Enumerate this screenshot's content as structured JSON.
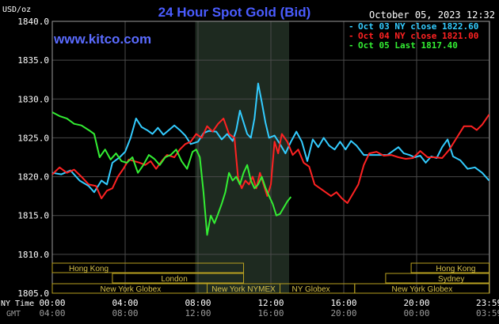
{
  "chart_data": {
    "type": "line",
    "title": "24 Hour Spot Gold (Bid)",
    "watermark": "www.kitco.com",
    "date_stamp": "October 05, 2023 12:32",
    "ylabel": "USD/oz",
    "ylim": [
      1805.0,
      1840.0
    ],
    "yticks": [
      "1840.0",
      "1835.0",
      "1830.0",
      "1825.0",
      "1820.0",
      "1815.0",
      "1810.0",
      "1805.0"
    ],
    "xlim": [
      0,
      24
    ],
    "xlabel_ny": "NY Time",
    "xlabel_gmt": "GMT",
    "xticks_ny": [
      {
        "h": 0,
        "label": "00:00"
      },
      {
        "h": 4,
        "label": "04:00"
      },
      {
        "h": 8,
        "label": "08:00"
      },
      {
        "h": 12,
        "label": "12:00"
      },
      {
        "h": 16,
        "label": "16:00"
      },
      {
        "h": 20,
        "label": "20:00"
      },
      {
        "h": 23.98,
        "label": "23:59"
      }
    ],
    "xticks_gmt": [
      {
        "h": 0,
        "label": "04:00"
      },
      {
        "h": 4,
        "label": "08:00"
      },
      {
        "h": 8,
        "label": "12:00"
      },
      {
        "h": 12,
        "label": "16:00"
      },
      {
        "h": 16,
        "label": "20:00"
      },
      {
        "h": 20,
        "label": "00:00"
      },
      {
        "h": 23.98,
        "label": "03:59"
      }
    ],
    "grid": true,
    "highlight_range": [
      7.85,
      13.0
    ],
    "legend_position": "top-right",
    "series": [
      {
        "name": "Oct 03 NY close 1822.60",
        "color": "#33ccff",
        "points": [
          [
            0,
            1820.5
          ],
          [
            0.5,
            1820.3
          ],
          [
            1.0,
            1820.8
          ],
          [
            1.5,
            1819.5
          ],
          [
            2.0,
            1818.8
          ],
          [
            2.3,
            1818.0
          ],
          [
            2.7,
            1819.5
          ],
          [
            3.0,
            1819.0
          ],
          [
            3.3,
            1821.8
          ],
          [
            3.7,
            1822.5
          ],
          [
            4.0,
            1823.2
          ],
          [
            4.3,
            1825.0
          ],
          [
            4.6,
            1827.5
          ],
          [
            4.9,
            1826.4
          ],
          [
            5.2,
            1826.0
          ],
          [
            5.5,
            1825.5
          ],
          [
            5.8,
            1826.3
          ],
          [
            6.1,
            1825.4
          ],
          [
            6.4,
            1826.0
          ],
          [
            6.7,
            1826.6
          ],
          [
            7.0,
            1826.0
          ],
          [
            7.3,
            1825.3
          ],
          [
            7.6,
            1824.2
          ],
          [
            8.0,
            1824.5
          ],
          [
            8.3,
            1825.6
          ],
          [
            8.6,
            1825.9
          ],
          [
            9.0,
            1825.8
          ],
          [
            9.3,
            1824.8
          ],
          [
            9.6,
            1825.5
          ],
          [
            9.9,
            1824.6
          ],
          [
            10.1,
            1826.0
          ],
          [
            10.3,
            1828.5
          ],
          [
            10.5,
            1827.0
          ],
          [
            10.7,
            1825.5
          ],
          [
            10.9,
            1825.0
          ],
          [
            11.1,
            1827.5
          ],
          [
            11.3,
            1832.0
          ],
          [
            11.5,
            1829.6
          ],
          [
            11.7,
            1827.0
          ],
          [
            11.9,
            1825.0
          ],
          [
            12.2,
            1825.3
          ],
          [
            12.5,
            1824.2
          ],
          [
            12.8,
            1823.0
          ],
          [
            13.1,
            1824.5
          ],
          [
            13.4,
            1825.8
          ],
          [
            13.7,
            1824.5
          ],
          [
            14.0,
            1822.0
          ],
          [
            14.3,
            1824.8
          ],
          [
            14.6,
            1823.8
          ],
          [
            14.9,
            1825.0
          ],
          [
            15.2,
            1824.0
          ],
          [
            15.5,
            1823.5
          ],
          [
            15.8,
            1824.5
          ],
          [
            16.1,
            1823.5
          ],
          [
            16.4,
            1824.6
          ],
          [
            16.7,
            1824.0
          ],
          [
            17.1,
            1822.8
          ],
          [
            17.5,
            1822.8
          ],
          [
            18.0,
            1822.8
          ],
          [
            18.4,
            1822.8
          ],
          [
            18.7,
            1823.3
          ],
          [
            19.0,
            1823.8
          ],
          [
            19.3,
            1823.0
          ],
          [
            19.6,
            1822.8
          ],
          [
            19.9,
            1822.5
          ],
          [
            20.2,
            1822.7
          ],
          [
            20.5,
            1821.8
          ],
          [
            20.8,
            1822.6
          ],
          [
            21.1,
            1822.4
          ],
          [
            21.4,
            1823.8
          ],
          [
            21.7,
            1824.8
          ],
          [
            22.0,
            1822.6
          ],
          [
            22.4,
            1822.1
          ],
          [
            22.8,
            1821.0
          ],
          [
            23.2,
            1821.2
          ],
          [
            23.6,
            1820.5
          ],
          [
            23.98,
            1819.5
          ]
        ]
      },
      {
        "name": "Oct 04 NY close 1821.00",
        "color": "#ff2222",
        "points": [
          [
            0,
            1820.3
          ],
          [
            0.4,
            1821.2
          ],
          [
            0.8,
            1820.5
          ],
          [
            1.2,
            1820.9
          ],
          [
            1.6,
            1820.0
          ],
          [
            2.0,
            1819.0
          ],
          [
            2.4,
            1818.8
          ],
          [
            2.7,
            1817.2
          ],
          [
            3.0,
            1818.2
          ],
          [
            3.3,
            1818.5
          ],
          [
            3.6,
            1820.0
          ],
          [
            3.9,
            1821.0
          ],
          [
            4.2,
            1822.2
          ],
          [
            4.5,
            1822.0
          ],
          [
            4.8,
            1821.8
          ],
          [
            5.1,
            1821.5
          ],
          [
            5.4,
            1822.0
          ],
          [
            5.7,
            1821.0
          ],
          [
            6.0,
            1822.0
          ],
          [
            6.3,
            1822.8
          ],
          [
            6.7,
            1822.5
          ],
          [
            7.0,
            1823.5
          ],
          [
            7.3,
            1824.2
          ],
          [
            7.6,
            1824.5
          ],
          [
            7.9,
            1825.5
          ],
          [
            8.2,
            1825.0
          ],
          [
            8.5,
            1826.5
          ],
          [
            8.8,
            1825.8
          ],
          [
            9.1,
            1826.8
          ],
          [
            9.4,
            1827.5
          ],
          [
            9.7,
            1825.5
          ],
          [
            10.0,
            1825.0
          ],
          [
            10.2,
            1819.8
          ],
          [
            10.4,
            1818.5
          ],
          [
            10.6,
            1819.5
          ],
          [
            10.8,
            1819.0
          ],
          [
            11.0,
            1820.0
          ],
          [
            11.2,
            1818.5
          ],
          [
            11.4,
            1820.5
          ],
          [
            11.6,
            1819.0
          ],
          [
            11.8,
            1817.5
          ],
          [
            12.0,
            1819.0
          ],
          [
            12.2,
            1824.5
          ],
          [
            12.4,
            1823.0
          ],
          [
            12.6,
            1825.5
          ],
          [
            12.9,
            1824.5
          ],
          [
            13.2,
            1822.8
          ],
          [
            13.5,
            1823.5
          ],
          [
            13.8,
            1821.8
          ],
          [
            14.1,
            1821.3
          ],
          [
            14.4,
            1819.0
          ],
          [
            14.7,
            1818.5
          ],
          [
            15.0,
            1818.0
          ],
          [
            15.3,
            1817.5
          ],
          [
            15.6,
            1818.0
          ],
          [
            15.9,
            1817.2
          ],
          [
            16.2,
            1816.6
          ],
          [
            16.5,
            1817.8
          ],
          [
            16.8,
            1819.0
          ],
          [
            17.1,
            1821.5
          ],
          [
            17.4,
            1823.0
          ],
          [
            17.8,
            1823.2
          ],
          [
            18.2,
            1822.7
          ],
          [
            18.6,
            1822.8
          ],
          [
            19.0,
            1822.5
          ],
          [
            19.4,
            1822.3
          ],
          [
            19.8,
            1822.4
          ],
          [
            20.2,
            1823.3
          ],
          [
            20.6,
            1822.5
          ],
          [
            21.0,
            1822.5
          ],
          [
            21.4,
            1822.4
          ],
          [
            21.8,
            1823.5
          ],
          [
            22.2,
            1825.0
          ],
          [
            22.6,
            1826.5
          ],
          [
            23.0,
            1826.5
          ],
          [
            23.3,
            1826.0
          ],
          [
            23.6,
            1826.7
          ],
          [
            23.98,
            1828.0
          ]
        ]
      },
      {
        "name": "Oct 05 Last 1817.40",
        "color": "#33ee33",
        "points": [
          [
            0,
            1828.3
          ],
          [
            0.4,
            1827.8
          ],
          [
            0.8,
            1827.5
          ],
          [
            1.2,
            1826.8
          ],
          [
            1.6,
            1826.6
          ],
          [
            2.0,
            1826.0
          ],
          [
            2.3,
            1825.5
          ],
          [
            2.6,
            1822.5
          ],
          [
            2.9,
            1823.5
          ],
          [
            3.2,
            1822.2
          ],
          [
            3.5,
            1823.0
          ],
          [
            3.8,
            1822.0
          ],
          [
            4.1,
            1821.8
          ],
          [
            4.4,
            1822.5
          ],
          [
            4.7,
            1820.5
          ],
          [
            5.0,
            1821.5
          ],
          [
            5.3,
            1822.8
          ],
          [
            5.6,
            1822.3
          ],
          [
            5.9,
            1821.5
          ],
          [
            6.2,
            1822.5
          ],
          [
            6.5,
            1822.8
          ],
          [
            6.8,
            1823.5
          ],
          [
            7.1,
            1822.0
          ],
          [
            7.4,
            1821.0
          ],
          [
            7.7,
            1823.2
          ],
          [
            7.9,
            1823.5
          ],
          [
            8.1,
            1822.5
          ],
          [
            8.3,
            1818.0
          ],
          [
            8.5,
            1812.5
          ],
          [
            8.7,
            1815.0
          ],
          [
            8.9,
            1814.0
          ],
          [
            9.1,
            1815.2
          ],
          [
            9.3,
            1816.5
          ],
          [
            9.5,
            1818.0
          ],
          [
            9.7,
            1820.5
          ],
          [
            9.9,
            1819.5
          ],
          [
            10.1,
            1820.0
          ],
          [
            10.3,
            1819.0
          ],
          [
            10.5,
            1820.5
          ],
          [
            10.7,
            1821.5
          ],
          [
            10.9,
            1819.5
          ],
          [
            11.1,
            1818.5
          ],
          [
            11.3,
            1819.0
          ],
          [
            11.5,
            1820.0
          ],
          [
            11.7,
            1818.6
          ],
          [
            11.9,
            1817.5
          ],
          [
            12.1,
            1816.5
          ],
          [
            12.3,
            1815.0
          ],
          [
            12.5,
            1815.2
          ],
          [
            12.7,
            1816.0
          ],
          [
            12.9,
            1816.8
          ],
          [
            13.1,
            1817.4
          ]
        ]
      }
    ],
    "sessions": [
      {
        "label": "Hong Kong",
        "start": 0,
        "end": 10.5,
        "row": 0,
        "label_h": 2.0
      },
      {
        "label": "London",
        "start": 3.3,
        "end": 10.5,
        "row": 1,
        "label_h": 6.7
      },
      {
        "label": "New York Globex",
        "start": 0,
        "end": 8.5,
        "row": 2,
        "label_h": 4.3
      },
      {
        "label": "New York NYMEX",
        "start": 8.5,
        "end": 12.5,
        "row": 2,
        "label_h": 10.5
      },
      {
        "label": "NY Globex",
        "start": 12.5,
        "end": 16.6,
        "row": 2,
        "label_h": 14.2
      },
      {
        "label": "Hong Kong",
        "start": 19.7,
        "end": 23.98,
        "row": 0,
        "label_h": 22.15
      },
      {
        "label": "Sydney",
        "start": 18.3,
        "end": 23.98,
        "row": 1,
        "label_h": 21.9
      },
      {
        "label": "New York Globex",
        "start": 16.6,
        "end": 23.98,
        "row": 2,
        "label_h": 20.3
      }
    ]
  }
}
